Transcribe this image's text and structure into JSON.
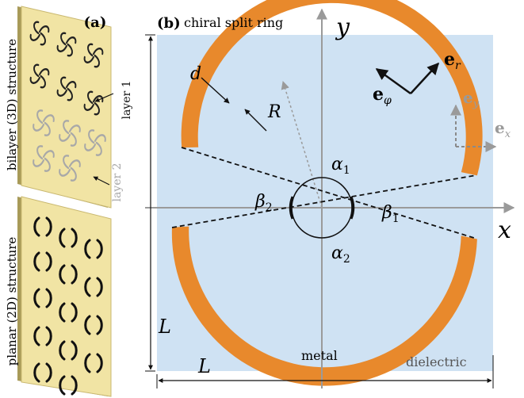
{
  "panel_a": {
    "label": "(a)",
    "bilayer_caption": "bilayer  (3D) structure",
    "planar_caption": "planar (2D) structure",
    "layer1_label": "layer 1",
    "layer2_label": "layer 2"
  },
  "panel_b": {
    "label": "(b)",
    "title": "chiral split ring",
    "axis_x": "x",
    "axis_y": "y",
    "symbols": {
      "d": "d",
      "R": "R",
      "L_vertical": "L",
      "L_horizontal": "L",
      "alpha1_base": "α",
      "alpha1_sub": "1",
      "alpha2_base": "α",
      "alpha2_sub": "2",
      "beta1_base": "β",
      "beta1_sub": "1",
      "beta2_base": "β",
      "beta2_sub": "2",
      "er_base": "e",
      "er_sub": "r",
      "ephi_base": "e",
      "ephi_sub": "φ",
      "ex_base": "e",
      "ex_sub": "x",
      "ey_base": "e",
      "ey_sub": "y"
    },
    "material_labels": {
      "metal": "metal",
      "dielectric": "dielectric"
    }
  },
  "colors": {
    "dielectric": "#cfe2f3",
    "metal": "#e8892c",
    "panel_a_substrate": "#f1e4a4",
    "axis_gray": "#9a9a9a",
    "layer2_gray": "#a8a8a8",
    "dashed_vector_gray": "#8a8a8a"
  }
}
